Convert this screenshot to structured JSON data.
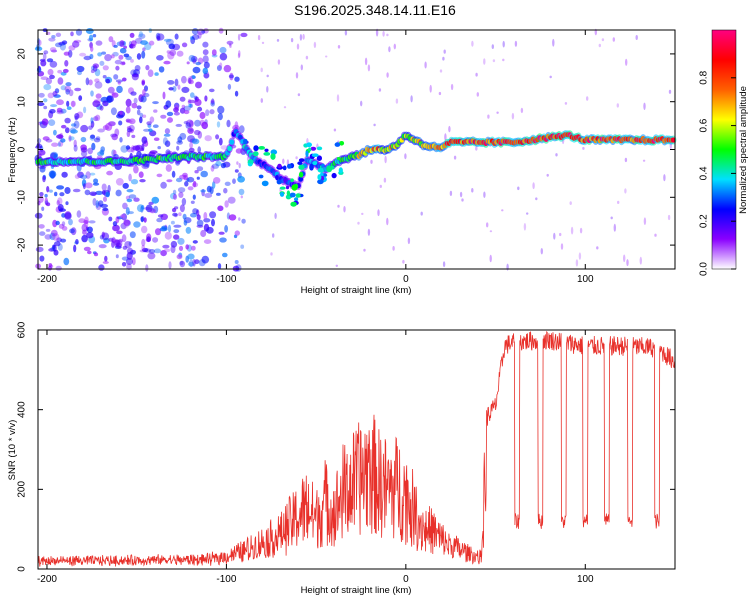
{
  "title": "S196.2025.348.14.11.E16",
  "chart_data": [
    {
      "type": "heatmap",
      "xlabel": "Height of straight line (km)",
      "ylabel": "Frequency (Hz)",
      "xlim": [
        -205,
        150
      ],
      "ylim": [
        -25,
        25
      ],
      "xticks": [
        "-200",
        "-100",
        "0",
        "100"
      ],
      "yticks": [
        "-20",
        "-10",
        "0",
        "10",
        "20"
      ],
      "colorbar": {
        "label": "Normalized spectral amplitude",
        "range": [
          0,
          1
        ],
        "ticks": [
          "0.0",
          "0.2",
          "0.4",
          "0.6",
          "0.8"
        ],
        "colors": [
          "#ffffff",
          "#8a00ff",
          "#0000ff",
          "#00e0ff",
          "#00ff00",
          "#ffff00",
          "#ff6000",
          "#ff0000",
          "#ff0080"
        ]
      },
      "ridge": {
        "x": [
          -205,
          -180,
          -160,
          -140,
          -120,
          -100,
          -95,
          -90,
          -85,
          -80,
          -75,
          -70,
          -65,
          -60,
          -55,
          -50,
          -45,
          -40,
          -35,
          -30,
          -25,
          -20,
          -15,
          -10,
          -5,
          0,
          5,
          10,
          15,
          20,
          25,
          30,
          40,
          60,
          80,
          90,
          100,
          120,
          150
        ],
        "freq": [
          -2.5,
          -2.5,
          -2.5,
          -2,
          -1.5,
          -1.5,
          4,
          1,
          -2,
          -3,
          -4,
          -6,
          -7,
          -8,
          -2,
          -3,
          -4,
          -3,
          -2,
          -1.5,
          -1,
          0,
          0,
          0,
          1,
          3,
          2,
          1,
          0.5,
          0.5,
          1.5,
          1.5,
          1.5,
          1.5,
          2.5,
          3,
          2,
          2,
          2
        ],
        "amplitude": [
          0.5,
          0.45,
          0.5,
          0.55,
          0.5,
          0.45,
          0.3,
          0.4,
          0.35,
          0.3,
          0.35,
          0.35,
          0.3,
          0.25,
          0.4,
          0.35,
          0.4,
          0.45,
          0.5,
          0.6,
          0.7,
          0.75,
          0.75,
          0.7,
          0.65,
          0.6,
          0.65,
          0.7,
          0.85,
          0.8,
          0.9,
          0.9,
          0.9,
          0.9,
          0.95,
          0.95,
          0.9,
          0.9,
          0.9
        ]
      },
      "noise_region": [
        -205,
        -100
      ]
    },
    {
      "type": "line",
      "xlabel": "Height of straight line (km)",
      "ylabel": "SNR (10 * v/v)",
      "xlim": [
        -205,
        150
      ],
      "ylim": [
        0,
        600
      ],
      "xticks": [
        "-200",
        "-100",
        "0",
        "100"
      ],
      "yticks": [
        "0",
        "200",
        "400",
        "600"
      ],
      "color": "#e8302a",
      "envelope": {
        "x": [
          -205,
          -150,
          -110,
          -100,
          -90,
          -80,
          -70,
          -60,
          -55,
          -50,
          -45,
          -40,
          -35,
          -30,
          -25,
          -20,
          -15,
          -10,
          -5,
          0,
          5,
          10,
          15,
          20,
          25,
          30,
          35,
          40,
          42,
          45,
          50,
          55,
          60,
          80,
          100,
          120,
          140,
          150
        ],
        "values": [
          20,
          22,
          25,
          35,
          55,
          80,
          110,
          170,
          200,
          160,
          220,
          180,
          250,
          270,
          300,
          330,
          280,
          260,
          270,
          240,
          180,
          130,
          120,
          90,
          70,
          60,
          45,
          35,
          30,
          380,
          410,
          560,
          570,
          575,
          560,
          560,
          555,
          520
        ]
      },
      "dips": [
        62,
        75,
        88,
        100,
        112,
        125,
        140
      ],
      "dip_level": 120
    }
  ]
}
